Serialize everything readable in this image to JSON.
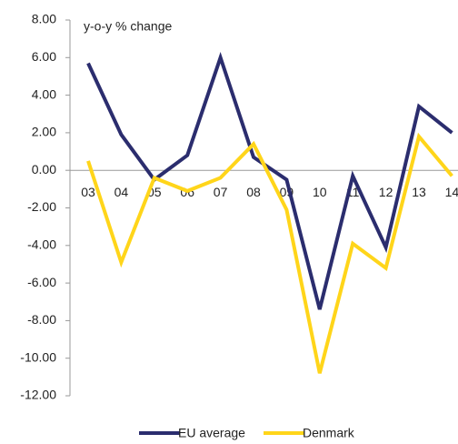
{
  "chart_data": {
    "type": "line",
    "annotation": "y-o-y % change",
    "categories": [
      "03",
      "04",
      "05",
      "06",
      "07",
      "08",
      "09",
      "10",
      "11",
      "12",
      "13",
      "14"
    ],
    "series": [
      {
        "name": "EU average",
        "color": "#2b2d6e",
        "values": [
          5.7,
          1.9,
          -0.5,
          0.8,
          6.0,
          0.7,
          -0.5,
          -7.4,
          -0.3,
          -4.1,
          3.4,
          2.0
        ]
      },
      {
        "name": "Denmark",
        "color": "#ffd51a",
        "values": [
          0.5,
          -4.9,
          -0.4,
          -1.1,
          -0.4,
          1.4,
          -2.1,
          -10.8,
          -3.9,
          -5.2,
          1.8,
          -0.3
        ]
      }
    ],
    "ylim": [
      -12,
      8
    ],
    "yticks": [
      {
        "value": -12,
        "label": "-12.00"
      },
      {
        "value": -10,
        "label": "-10.00"
      },
      {
        "value": -8,
        "label": "-8.00"
      },
      {
        "value": -6,
        "label": "-6.00"
      },
      {
        "value": -4,
        "label": "-4.00"
      },
      {
        "value": -2,
        "label": "-2.00"
      },
      {
        "value": 0,
        "label": "0.00"
      },
      {
        "value": 2,
        "label": "2.00"
      },
      {
        "value": 4,
        "label": "4.00"
      },
      {
        "value": 6,
        "label": "6.00"
      },
      {
        "value": 8,
        "label": "8.00"
      }
    ],
    "legend": "bottom"
  }
}
